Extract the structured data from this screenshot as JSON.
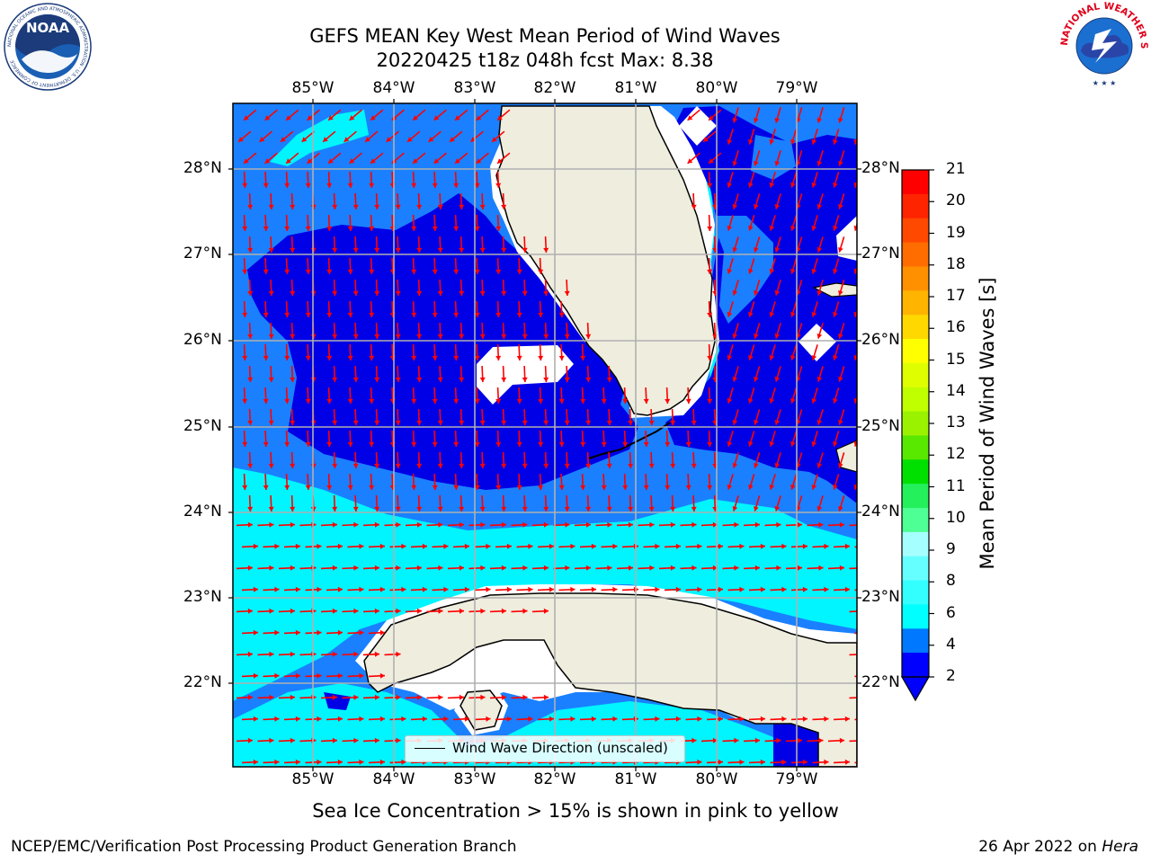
{
  "title_line1": "GEFS MEAN Key West Mean Period of Wind Waves",
  "title_line2": "20220425 t18z 048h fcst   Max: 8.38",
  "lon_labels": [
    "85°W",
    "84°W",
    "83°W",
    "82°W",
    "81°W",
    "80°W",
    "79°W"
  ],
  "lat_labels": [
    "28°N",
    "27°N",
    "26°N",
    "25°N",
    "24°N",
    "23°N",
    "22°N"
  ],
  "colorbar": {
    "label": "Mean Period of Wind Waves [s]",
    "ticks": [
      "21",
      "20",
      "19",
      "18",
      "17",
      "16",
      "15",
      "14",
      "13",
      "12",
      "11",
      "10",
      "9",
      "8",
      "6",
      "4",
      "2"
    ],
    "colors": [
      "#ff0000",
      "#ff2400",
      "#ff4800",
      "#ff6c00",
      "#ff9000",
      "#ffb400",
      "#ffd800",
      "#ffff00",
      "#dfff00",
      "#bfff00",
      "#9bf200",
      "#59e800",
      "#00e000",
      "#23f05a",
      "#4dff94",
      "#a6ffff",
      "#66ffff",
      "#33ffff",
      "#00ffff",
      "#0078ff",
      "#0000ff"
    ]
  },
  "legend_label": "Wind Wave Direction (unscaled)",
  "footer_note": "Sea Ice Concentration > 15% is shown in pink to yellow",
  "footer_left": "NCEP/EMC/Verification Post Processing Product Generation Branch",
  "footer_right_date": "26 Apr 2022 on",
  "footer_right_host": "Hera",
  "logos": {
    "noaa_text": "NOAA",
    "noaa_ring": "NATIONAL OCEANIC AND ATMOSPHERIC ADMINISTRATION · U.S. DEPARTMENT OF COMMERCE",
    "nws_ring": "NATIONAL WEATHER SERVICE"
  },
  "colors": {
    "land": "#efedde",
    "sea_blue": "#1a80ff",
    "sea_deep": "#0000e6",
    "sea_cyan": "#00f5ff",
    "arrow": "#ff0000",
    "grid": "#b0b0b0"
  }
}
